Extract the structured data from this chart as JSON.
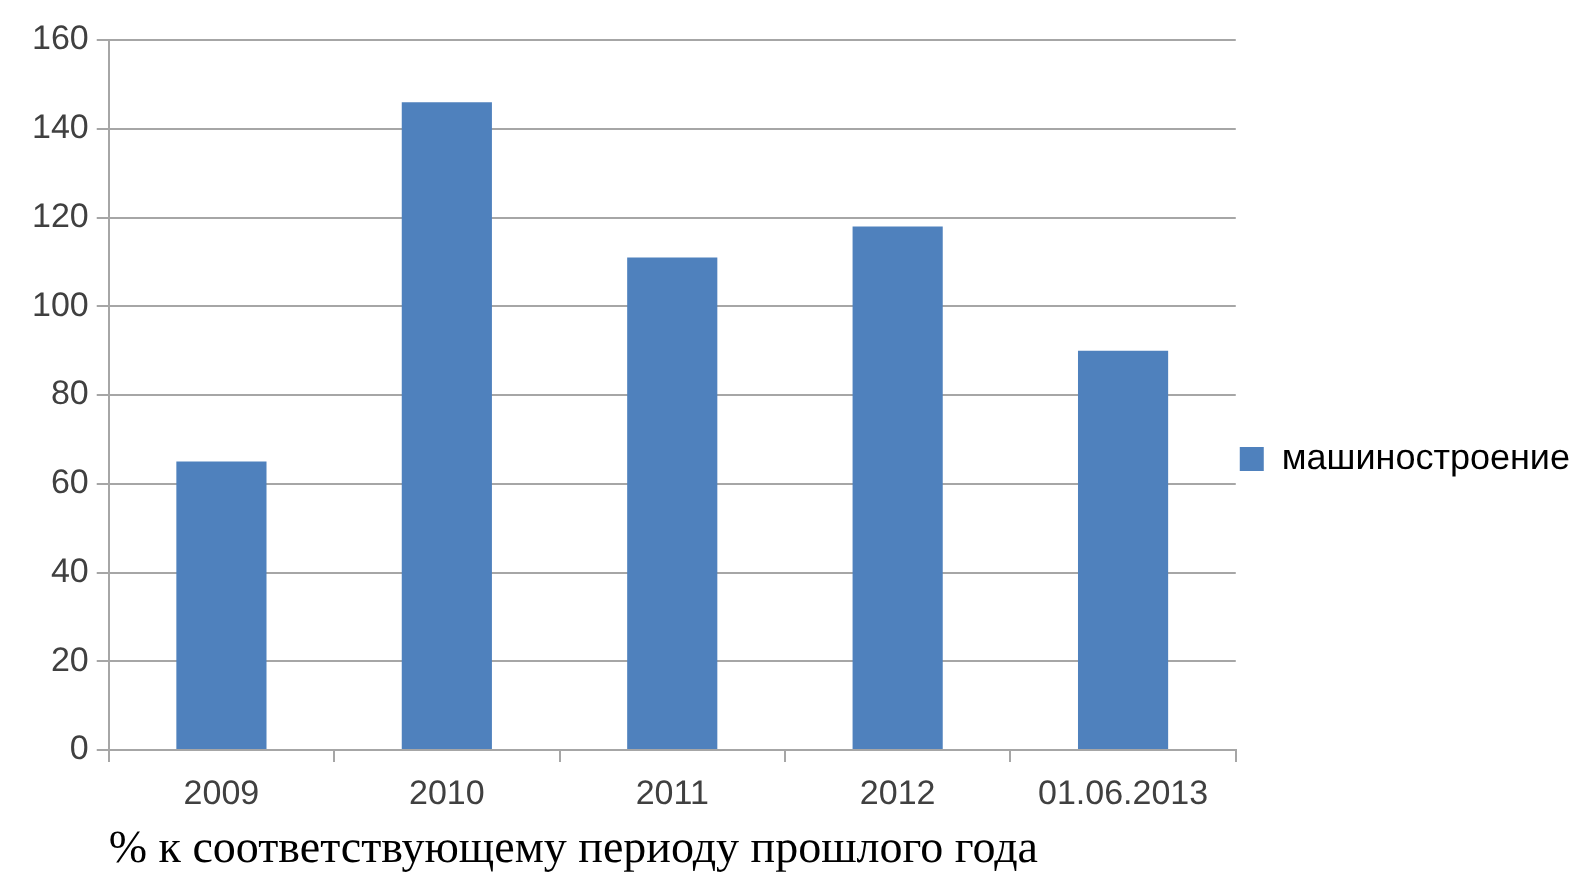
{
  "chart_data": {
    "type": "bar",
    "xlabel": "% к соответствующему периоду прошлого года",
    "categories": [
      "2009",
      "2010",
      "2011",
      "2012",
      "01.06.2013"
    ],
    "series": [
      {
        "name": "машиностроение",
        "color": "#4f81bd",
        "values": [
          65,
          146,
          111,
          118,
          90
        ]
      }
    ],
    "ylim": [
      0,
      160
    ],
    "yticks": [
      0,
      20,
      40,
      60,
      80,
      100,
      120,
      140,
      160
    ],
    "grid": "y",
    "legend": "right"
  }
}
